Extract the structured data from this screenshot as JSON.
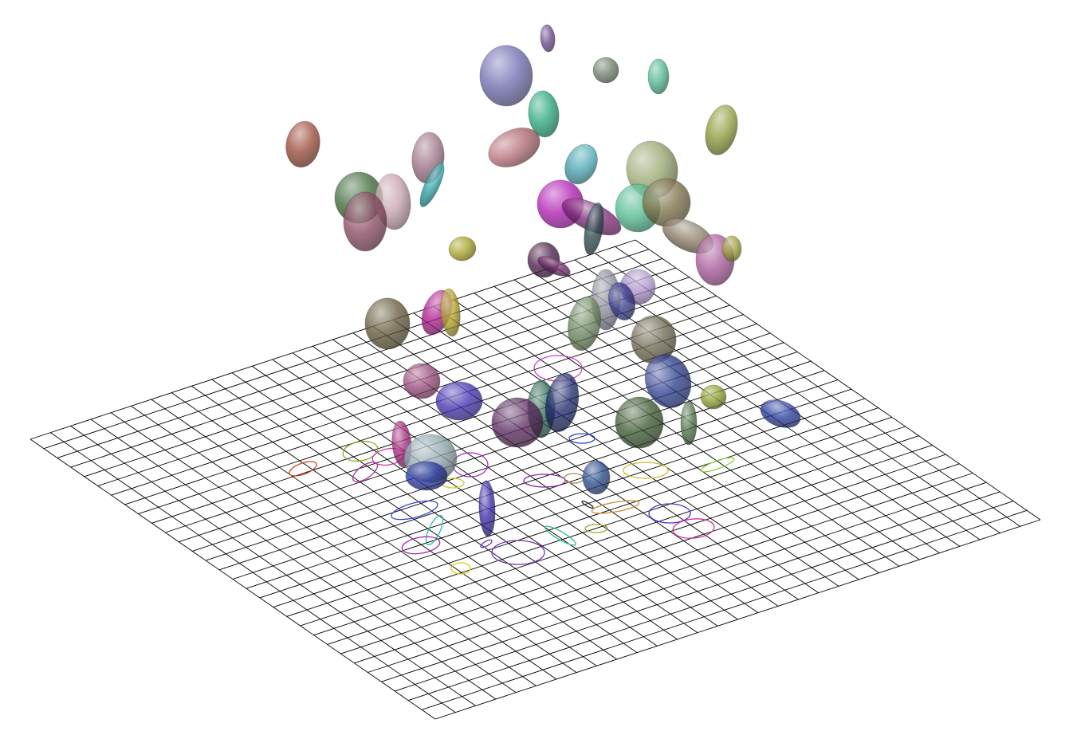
{
  "scene": {
    "background": "#ffffff",
    "grid": {
      "rows": 30,
      "cols": 30,
      "line_color": "#000000"
    },
    "ellipsoids": [
      {
        "name": "ellipsoid-1",
        "color": "#6a4a8c"
      },
      {
        "name": "ellipsoid-2",
        "color": "#6f6cae"
      },
      {
        "name": "ellipsoid-3",
        "color": "#6e7f6a"
      },
      {
        "name": "ellipsoid-4",
        "color": "#4fb58d"
      },
      {
        "name": "ellipsoid-5",
        "color": "#2aa87e"
      },
      {
        "name": "ellipsoid-6",
        "color": "#8f9a3a"
      },
      {
        "name": "ellipsoid-7",
        "color": "#9a4a3a"
      },
      {
        "name": "ellipsoid-8",
        "color": "#b36b74"
      },
      {
        "name": "ellipsoid-9",
        "color": "#4aa6b4"
      },
      {
        "name": "ellipsoid-10",
        "color": "#9e7388"
      },
      {
        "name": "ellipsoid-11",
        "color": "#2aa0a6"
      },
      {
        "name": "ellipsoid-12",
        "color": "#3e6a3a"
      },
      {
        "name": "ellipsoid-13",
        "color": "#c7a2ae"
      },
      {
        "name": "ellipsoid-14",
        "color": "#8c4b65"
      },
      {
        "name": "ellipsoid-15",
        "color": "#98a770"
      },
      {
        "name": "ellipsoid-16",
        "color": "#b01eb3"
      },
      {
        "name": "ellipsoid-17",
        "color": "#7d2a78"
      },
      {
        "name": "ellipsoid-18",
        "color": "#4fba8e"
      },
      {
        "name": "ellipsoid-19",
        "color": "#7e7249"
      },
      {
        "name": "ellipsoid-20",
        "color": "#2e4a4e"
      },
      {
        "name": "ellipsoid-21",
        "color": "#8a7a66"
      },
      {
        "name": "ellipsoid-22",
        "color": "#a9589a"
      },
      {
        "name": "ellipsoid-23",
        "color": "#9da03a"
      },
      {
        "name": "ellipsoid-24",
        "color": "#a8a127"
      },
      {
        "name": "ellipsoid-25",
        "color": "#4a1f48"
      },
      {
        "name": "ellipsoid-26",
        "color": "#6e2a66"
      },
      {
        "name": "ellipsoid-27",
        "color": "#8a8a9a"
      },
      {
        "name": "ellipsoid-28",
        "color": "#a890c8"
      },
      {
        "name": "ellipsoid-29",
        "color": "#3a3c8e"
      },
      {
        "name": "ellipsoid-30",
        "color": "#6e8a60"
      },
      {
        "name": "ellipsoid-31",
        "color": "#665b3c"
      },
      {
        "name": "ellipsoid-32",
        "color": "#b01f90"
      },
      {
        "name": "ellipsoid-33",
        "color": "#b0a32a"
      },
      {
        "name": "ellipsoid-34",
        "color": "#6e6850"
      },
      {
        "name": "ellipsoid-35",
        "color": "#2e3f8e"
      },
      {
        "name": "ellipsoid-36",
        "color": "#8c9d2e"
      },
      {
        "name": "ellipsoid-37",
        "color": "#2a3c9a"
      },
      {
        "name": "ellipsoid-38",
        "color": "#9a4a7c"
      },
      {
        "name": "ellipsoid-39",
        "color": "#4432b0"
      },
      {
        "name": "ellipsoid-40",
        "color": "#2d6a55"
      },
      {
        "name": "ellipsoid-41",
        "color": "#1e2a6a"
      },
      {
        "name": "ellipsoid-42",
        "color": "#5a2a5e"
      },
      {
        "name": "ellipsoid-43",
        "color": "#3e5a32"
      },
      {
        "name": "ellipsoid-44",
        "color": "#4e7048"
      },
      {
        "name": "ellipsoid-45",
        "color": "#a02a7a"
      },
      {
        "name": "ellipsoid-46",
        "color": "#8ea6ae"
      },
      {
        "name": "ellipsoid-47",
        "color": "#2a38a0"
      },
      {
        "name": "ellipsoid-48",
        "color": "#2a4a8a"
      },
      {
        "name": "ellipsoid-49",
        "color": "#3a2aa6"
      }
    ],
    "shadow_outlines": [
      {
        "name": "shadow-outline-1",
        "color": "#cc4422"
      },
      {
        "name": "shadow-outline-2",
        "color": "#88aa22"
      },
      {
        "name": "shadow-outline-3",
        "color": "#aa3399"
      },
      {
        "name": "shadow-outline-4",
        "color": "#cc33aa"
      },
      {
        "name": "shadow-outline-5",
        "color": "#3344cc"
      },
      {
        "name": "shadow-outline-6",
        "color": "#aa22cc"
      },
      {
        "name": "shadow-outline-7",
        "color": "#cccc22"
      },
      {
        "name": "shadow-outline-8",
        "color": "#22bbaa"
      },
      {
        "name": "shadow-outline-9",
        "color": "#aa22aa"
      },
      {
        "name": "shadow-outline-10",
        "color": "#ddcc11"
      },
      {
        "name": "shadow-outline-11",
        "color": "#7733aa"
      },
      {
        "name": "shadow-outline-12",
        "color": "#6633cc"
      },
      {
        "name": "shadow-outline-13",
        "color": "#cc44bb"
      },
      {
        "name": "shadow-outline-14",
        "color": "#33bb88"
      },
      {
        "name": "shadow-outline-15",
        "color": "#8822aa"
      },
      {
        "name": "shadow-outline-16",
        "color": "#aa8855"
      },
      {
        "name": "shadow-outline-17",
        "color": "#2244cc"
      },
      {
        "name": "shadow-outline-18",
        "color": "#99aa22"
      },
      {
        "name": "shadow-outline-19",
        "color": "#cc8833"
      },
      {
        "name": "shadow-outline-20",
        "color": "#ccbb22"
      },
      {
        "name": "shadow-outline-21",
        "color": "#88cc22"
      },
      {
        "name": "shadow-outline-22",
        "color": "#5533cc"
      },
      {
        "name": "shadow-outline-23",
        "color": "#cc3399"
      },
      {
        "name": "shadow-outline-24",
        "color": "#2a2a2a"
      }
    ]
  }
}
